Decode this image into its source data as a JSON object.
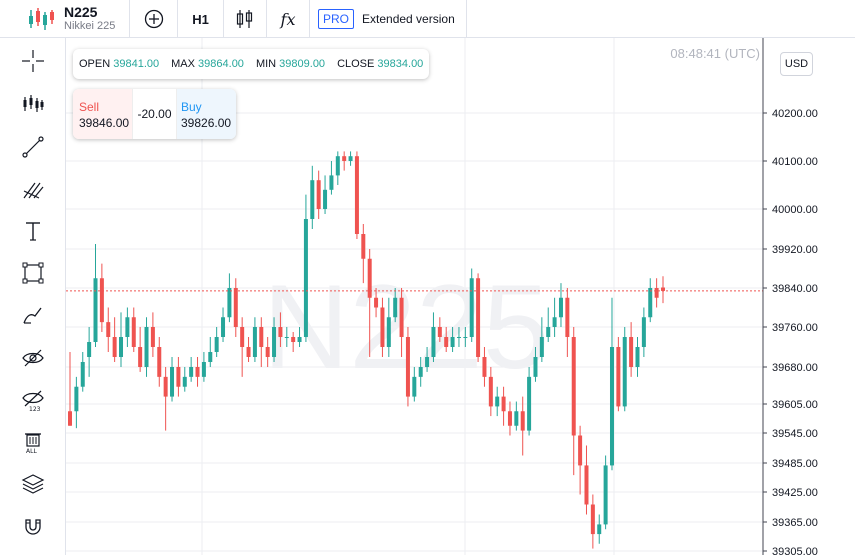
{
  "header": {
    "symbol": "N225",
    "symbol_subtitle": "Nikkei 225",
    "interval": "H1",
    "pro_badge": "PRO",
    "extended_label": "Extended version"
  },
  "ohlc": {
    "open_label": "OPEN",
    "open": "39841.00",
    "max_label": "MAX",
    "max": "39864.00",
    "min_label": "MIN",
    "min": "39809.00",
    "close_label": "CLOSE",
    "close": "39834.00"
  },
  "trade": {
    "sell_label": "Sell",
    "sell_price": "39846.00",
    "spread": "-20.00",
    "buy_label": "Buy",
    "buy_price": "39826.00"
  },
  "clock": "08:48:41 (UTC)",
  "currency": "USD",
  "watermark": "N225",
  "colors": {
    "up": "#26a69a",
    "down": "#ef5350",
    "grid": "#eceef2",
    "axis": "#434651"
  },
  "sidebar_icons": [
    "crosshair-icon",
    "indicators-icon",
    "trendline-icon",
    "pitchfork-icon",
    "text-icon",
    "rectangle-icon",
    "brush-icon",
    "hide-drawings-icon",
    "hide-indicators-icon",
    "trash-icon",
    "layers-icon",
    "magnet-icon"
  ],
  "chart_data": {
    "type": "candlestick",
    "ylim": [
      39300,
      40300
    ],
    "yticks": [
      "40200.00",
      "40100.00",
      "40000.00",
      "39920.00",
      "39840.00",
      "39760.00",
      "39680.00",
      "39605.00",
      "39545.00",
      "39485.00",
      "39425.00",
      "39365.00",
      "39305.00"
    ],
    "last_price": 39834,
    "candles": [
      [
        39590,
        39560,
        39710,
        39560
      ],
      [
        39590,
        39640,
        39660,
        39555
      ],
      [
        39640,
        39690,
        39710,
        39630
      ],
      [
        39700,
        39730,
        39760,
        39660
      ],
      [
        39730,
        39860,
        39930,
        39720
      ],
      [
        39860,
        39770,
        39890,
        39750
      ],
      [
        39770,
        39740,
        39800,
        39710
      ],
      [
        39740,
        39700,
        39780,
        39690
      ],
      [
        39700,
        39740,
        39790,
        39680
      ],
      [
        39740,
        39780,
        39800,
        39720
      ],
      [
        39780,
        39720,
        39800,
        39710
      ],
      [
        39720,
        39680,
        39760,
        39670
      ],
      [
        39680,
        39760,
        39780,
        39660
      ],
      [
        39760,
        39720,
        39790,
        39700
      ],
      [
        39720,
        39660,
        39740,
        39640
      ],
      [
        39660,
        39620,
        39680,
        39550
      ],
      [
        39620,
        39680,
        39700,
        39610
      ],
      [
        39680,
        39640,
        39700,
        39620
      ],
      [
        39640,
        39660,
        39680,
        39630
      ],
      [
        39660,
        39680,
        39700,
        39650
      ],
      [
        39680,
        39660,
        39700,
        39640
      ],
      [
        39660,
        39690,
        39710,
        39650
      ],
      [
        39690,
        39710,
        39740,
        39680
      ],
      [
        39710,
        39740,
        39760,
        39700
      ],
      [
        39740,
        39780,
        39800,
        39730
      ],
      [
        39780,
        39840,
        39870,
        39770
      ],
      [
        39840,
        39760,
        39860,
        39740
      ],
      [
        39760,
        39720,
        39780,
        39660
      ],
      [
        39720,
        39700,
        39740,
        39690
      ],
      [
        39700,
        39760,
        39780,
        39690
      ],
      [
        39760,
        39720,
        39780,
        39680
      ],
      [
        39720,
        39700,
        39740,
        39680
      ],
      [
        39700,
        39760,
        39780,
        39690
      ],
      [
        39760,
        39740,
        39790,
        39720
      ],
      [
        39740,
        39740,
        39760,
        39720
      ],
      [
        39740,
        39730,
        39750,
        39710
      ],
      [
        39730,
        39740,
        39760,
        39720
      ],
      [
        39740,
        39980,
        40030,
        39730
      ],
      [
        39980,
        40060,
        40090,
        39960
      ],
      [
        40060,
        40000,
        40080,
        39980
      ],
      [
        40000,
        40040,
        40070,
        39990
      ],
      [
        40040,
        40070,
        40100,
        40030
      ],
      [
        40070,
        40110,
        40120,
        40050
      ],
      [
        40110,
        40100,
        40120,
        40080
      ],
      [
        40100,
        40110,
        40120,
        40090
      ],
      [
        40110,
        39950,
        40120,
        39940
      ],
      [
        39950,
        39900,
        39970,
        39850
      ],
      [
        39900,
        39820,
        39920,
        39700
      ],
      [
        39820,
        39800,
        39840,
        39780
      ],
      [
        39800,
        39720,
        39820,
        39700
      ],
      [
        39720,
        39780,
        39820,
        39700
      ],
      [
        39780,
        39820,
        39840,
        39770
      ],
      [
        39820,
        39740,
        39840,
        39700
      ],
      [
        39740,
        39620,
        39760,
        39600
      ],
      [
        39620,
        39660,
        39680,
        39610
      ],
      [
        39660,
        39680,
        39700,
        39640
      ],
      [
        39680,
        39700,
        39720,
        39670
      ],
      [
        39700,
        39760,
        39790,
        39690
      ],
      [
        39760,
        39740,
        39780,
        39730
      ],
      [
        39740,
        39720,
        39760,
        39710
      ],
      [
        39720,
        39740,
        39760,
        39710
      ],
      [
        39740,
        39740,
        39760,
        39720
      ],
      [
        39740,
        39740,
        39760,
        39720
      ],
      [
        39740,
        39860,
        39880,
        39730
      ],
      [
        39860,
        39700,
        39870,
        39690
      ],
      [
        39700,
        39660,
        39720,
        39640
      ],
      [
        39660,
        39600,
        39680,
        39580
      ],
      [
        39600,
        39620,
        39640,
        39580
      ],
      [
        39620,
        39590,
        39640,
        39560
      ],
      [
        39590,
        39560,
        39610,
        39540
      ],
      [
        39560,
        39590,
        39610,
        39550
      ],
      [
        39590,
        39550,
        39620,
        39500
      ],
      [
        39550,
        39660,
        39680,
        39540
      ],
      [
        39660,
        39700,
        39720,
        39650
      ],
      [
        39700,
        39740,
        39780,
        39690
      ],
      [
        39740,
        39760,
        39800,
        39730
      ],
      [
        39760,
        39780,
        39820,
        39740
      ],
      [
        39780,
        39820,
        39850,
        39760
      ],
      [
        39820,
        39740,
        39840,
        39700
      ],
      [
        39740,
        39540,
        39760,
        39460
      ],
      [
        39540,
        39480,
        39560,
        39420
      ],
      [
        39480,
        39400,
        39520,
        39380
      ],
      [
        39400,
        39340,
        39420,
        39310
      ],
      [
        39340,
        39360,
        39380,
        39320
      ],
      [
        39360,
        39480,
        39500,
        39350
      ],
      [
        39480,
        39720,
        39820,
        39470
      ],
      [
        39720,
        39600,
        39740,
        39590
      ],
      [
        39600,
        39740,
        39760,
        39590
      ],
      [
        39740,
        39680,
        39770,
        39660
      ],
      [
        39680,
        39720,
        39740,
        39660
      ],
      [
        39720,
        39780,
        39800,
        39700
      ],
      [
        39780,
        39840,
        39860,
        39770
      ],
      [
        39840,
        39820,
        39860,
        39800
      ],
      [
        39841,
        39834,
        39864,
        39809
      ]
    ]
  }
}
